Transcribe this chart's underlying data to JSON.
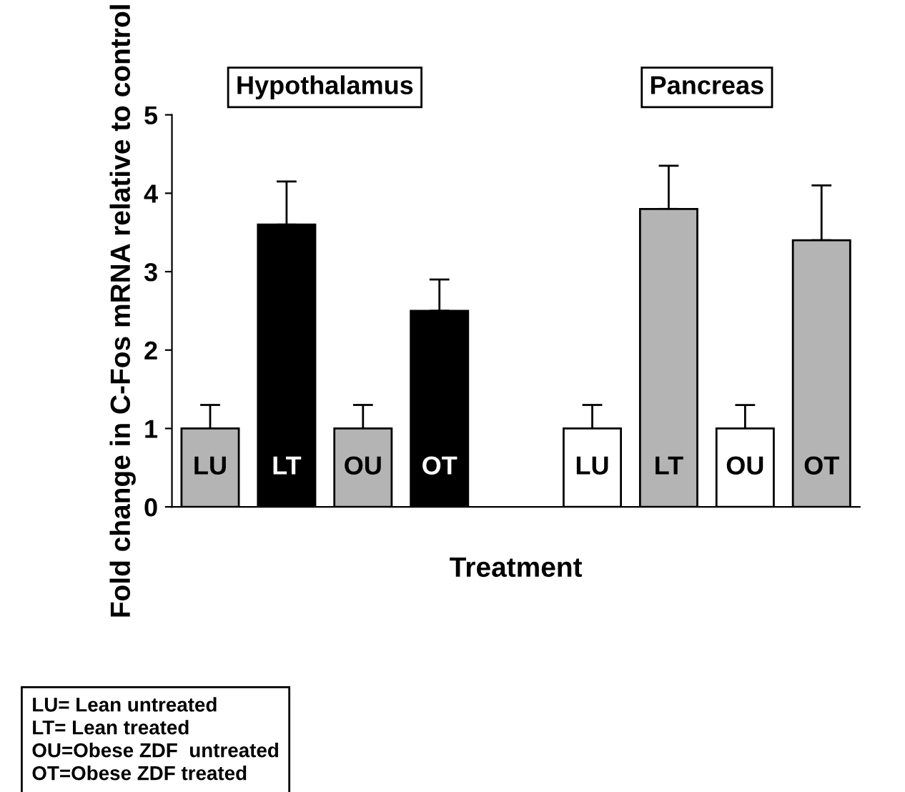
{
  "chart_data": {
    "type": "bar",
    "ylabel": "Fold change in C-Fos mRNA relative to control",
    "xlabel": "Treatment",
    "categories": [
      "LU",
      "LT",
      "OU",
      "OT",
      null,
      "LU",
      "LT",
      "OU",
      "OT"
    ],
    "values": [
      1,
      3.6,
      1,
      2.5,
      null,
      1,
      3.8,
      1,
      3.4
    ],
    "colors": [
      "#b4b4b4",
      "#000000",
      "#b4b4b4",
      "#000000",
      "#ffffff",
      "#ffffff",
      "#b4b4b4",
      "#ffffff",
      "#b4b4b4"
    ],
    "errors": [
      0.3,
      0.55,
      0.3,
      0.4,
      null,
      0.3,
      0.55,
      0.3,
      0.7
    ],
    "ylim": [
      0,
      5
    ],
    "yticks": [
      0,
      1,
      2,
      3,
      4,
      5
    ],
    "grid": false,
    "annotations": [
      "Hypothalamus",
      "Pancreas",
      "LU= Lean untreated",
      "LT= Lean treated",
      "OU=Obese ZDF  untreated",
      "OT=Obese ZDF treated"
    ]
  }
}
